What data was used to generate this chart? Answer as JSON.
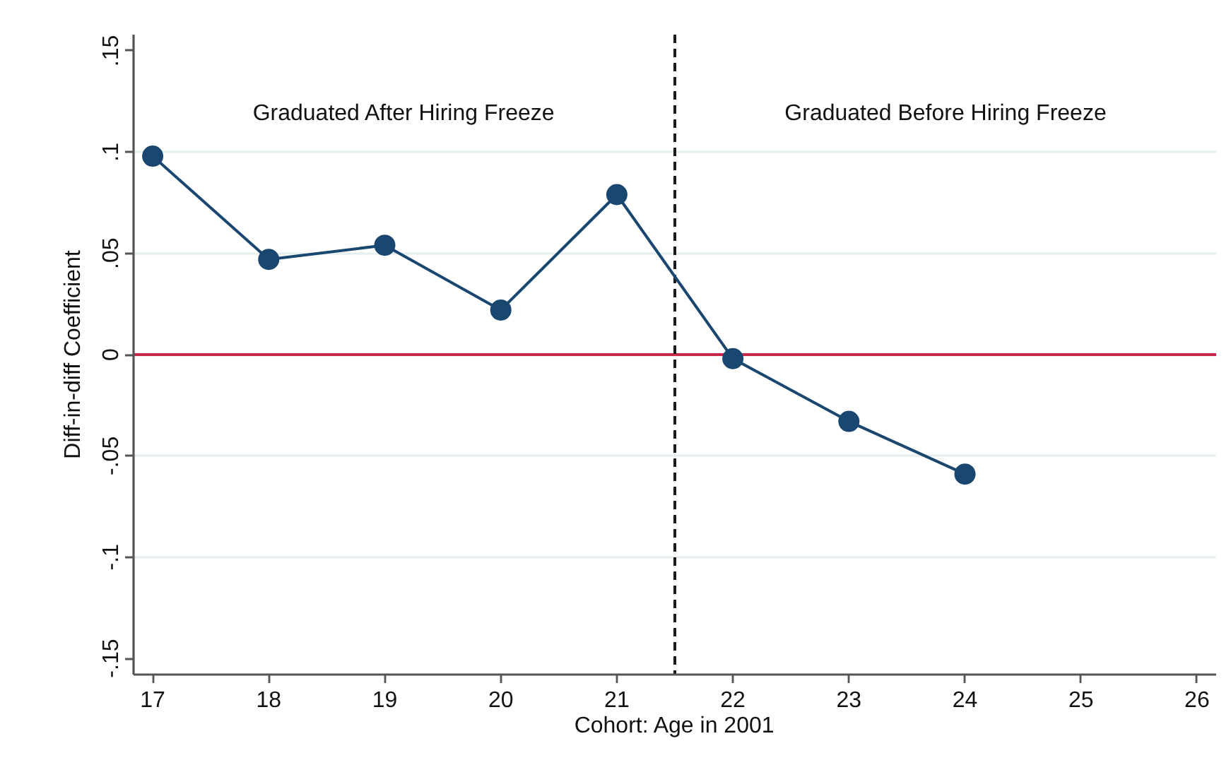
{
  "chart_data": {
    "type": "line",
    "xlabel": "Cohort: Age in 2001",
    "ylabel": "Diff-in-diff Coefficient",
    "x": [
      17,
      18,
      19,
      20,
      21,
      22,
      23,
      24
    ],
    "series": [
      {
        "color": "#1a476f",
        "values": [
          0.098,
          0.047,
          0.054,
          0.022,
          0.079,
          -0.002,
          -0.033,
          -0.059
        ]
      }
    ],
    "xlim": [
      16.835,
      26.165
    ],
    "xticks": [
      17,
      18,
      19,
      20,
      21,
      22,
      23,
      24,
      25,
      26
    ],
    "ylim": [
      -0.158,
      0.158
    ],
    "yticks": [
      {
        "value": -0.15,
        "label": "-.15"
      },
      {
        "value": -0.1,
        "label": "-.1"
      },
      {
        "value": -0.05,
        "label": "-.05"
      },
      0,
      {
        "value": 0.05,
        "label": ".05"
      },
      {
        "value": 0.1,
        "label": ".1"
      },
      {
        "value": 0.15,
        "label": ".15"
      }
    ],
    "grid": "y",
    "marker": "circle",
    "line_style": "solid",
    "ref_lines": [
      {
        "axis": "y",
        "value": 0,
        "color": "#c8274a",
        "line_style": "solid"
      },
      {
        "axis": "x",
        "value": 21.5,
        "color": "#1a1a1a",
        "line_style": "dashed"
      }
    ],
    "annotations": [
      "Graduated After Hiring Freeze",
      "Graduated Before Hiring Freeze"
    ]
  }
}
